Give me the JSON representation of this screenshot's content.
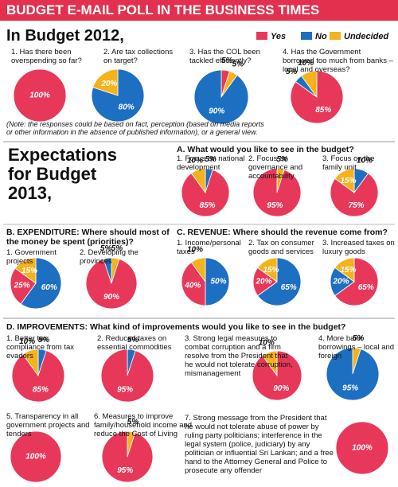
{
  "headings": {
    "title": "BUDGET E-MAIL POLL IN THE BUSINESS TIMES",
    "budget_2012": "In Budget 2012,",
    "note": "(Note: the responses could be based on fact, perception (based on media reports or other information in the absence of published information), or a general view.",
    "budget_2013": "Expectations for Budget 2013,",
    "section_a": "A. What would you like to see in the budget?",
    "section_b": "B. EXPENDITURE: Where should most of the money be spent (priorities)?",
    "section_c": "C. REVENUE: Where should the revenue come from?",
    "section_d": "D. IMPROVEMENTS: What kind of improvements would you like to see in the budget?"
  },
  "legend": {
    "items": [
      "Yes",
      "No",
      "Undecided"
    ],
    "colors": [
      "#e8385a",
      "#1d6fc2",
      "#f6b21b"
    ]
  },
  "chart_data": [
    {
      "type": "pie",
      "title": "1. Has there been overspending so far?",
      "categories": [
        "Yes"
      ],
      "values": [
        100
      ],
      "value_labels": [
        "100%"
      ]
    },
    {
      "type": "pie",
      "title": "2. Are tax collections on target?",
      "categories": [
        "No",
        "Undecided"
      ],
      "values": [
        80,
        20
      ],
      "value_labels": [
        "80%",
        "20%"
      ]
    },
    {
      "type": "pie",
      "title": "3. Has the COL been tackled efficiently?",
      "categories": [
        "Yes",
        "Undecided",
        "No"
      ],
      "values": [
        5,
        5,
        90
      ],
      "value_labels": [
        "5%",
        "5%",
        "90%"
      ]
    },
    {
      "type": "pie",
      "title": "4. Has the Government borrowed too much from banks – local and overseas?",
      "categories": [
        "Yes",
        "No",
        "Undecided"
      ],
      "values": [
        85,
        5,
        10
      ],
      "value_labels": [
        "85%",
        "5%",
        "10%"
      ]
    },
    {
      "type": "pie",
      "title": "1. Focus on national development",
      "categories": [
        "No",
        "Yes",
        "Undecided"
      ],
      "values": [
        5,
        85,
        10
      ],
      "value_labels": [
        "5%",
        "85%",
        "10%"
      ]
    },
    {
      "type": "pie",
      "title": "2. Focus on governance and accountability",
      "categories": [
        "Undecided",
        "Yes"
      ],
      "values": [
        5,
        95
      ],
      "value_labels": [
        "5%",
        "95%"
      ]
    },
    {
      "type": "pie",
      "title": "3. Focus on the family unit",
      "categories": [
        "No",
        "Yes",
        "Undecided"
      ],
      "values": [
        10,
        75,
        15
      ],
      "value_labels": [
        "10%",
        "75%",
        "15%"
      ]
    },
    {
      "type": "pie",
      "title": "1. Government projects",
      "categories": [
        "No",
        "Yes",
        "Undecided"
      ],
      "values": [
        60,
        25,
        15
      ],
      "value_labels": [
        "60%",
        "25%",
        "15%"
      ]
    },
    {
      "type": "pie",
      "title": "2. Developing the provinces",
      "categories": [
        "Undecided",
        "Yes",
        "No"
      ],
      "values": [
        5,
        90,
        5
      ],
      "value_labels": [
        "5%",
        "90%",
        "5%"
      ]
    },
    {
      "type": "pie",
      "title": "1. Income/personal taxes",
      "categories": [
        "No",
        "Yes",
        "Undecided"
      ],
      "values": [
        50,
        40,
        10
      ],
      "value_labels": [
        "50%",
        "40%",
        "10%"
      ]
    },
    {
      "type": "pie",
      "title": "2. Tax on consumer goods and services",
      "categories": [
        "No",
        "Yes",
        "Undecided"
      ],
      "values": [
        65,
        20,
        15
      ],
      "value_labels": [
        "65%",
        "20%",
        "15%"
      ]
    },
    {
      "type": "pie",
      "title": "3. Increased taxes on luxury goods",
      "categories": [
        "Yes",
        "No",
        "Undecided"
      ],
      "values": [
        65,
        20,
        15
      ],
      "value_labels": [
        "65%",
        "20%",
        "15%"
      ]
    },
    {
      "type": "pie",
      "title": "1. Better tax compliance from tax evaders",
      "categories": [
        "No",
        "Yes",
        "Undecided"
      ],
      "values": [
        5,
        85,
        10
      ],
      "value_labels": [
        "5%",
        "85%",
        "10%"
      ]
    },
    {
      "type": "pie",
      "title": "2. Reduced taxes on essential commodities",
      "categories": [
        "No",
        "Yes"
      ],
      "values": [
        5,
        95
      ],
      "value_labels": [
        "5%",
        "95%"
      ]
    },
    {
      "type": "pie",
      "title": "3. Strong legal measures to combat corruption and a firm resolve from the President that he would not tolerate corruption, mismanagement",
      "categories": [
        "Yes",
        "Undecided"
      ],
      "values": [
        90,
        10
      ],
      "value_labels": [
        "90%",
        "10%"
      ]
    },
    {
      "type": "pie",
      "title": "4. More bank borrowings – local and foreign",
      "categories": [
        "Undecided",
        "No"
      ],
      "values": [
        5,
        95
      ],
      "value_labels": [
        "5%",
        "95%"
      ]
    },
    {
      "type": "pie",
      "title": "5. Transparency in all government projects and tenders",
      "categories": [
        "Yes"
      ],
      "values": [
        100
      ],
      "value_labels": [
        "100%"
      ]
    },
    {
      "type": "pie",
      "title": "6. Measures to improve family/household income and reduce the Cost of Living",
      "categories": [
        "Undecided",
        "Yes"
      ],
      "values": [
        5,
        95
      ],
      "value_labels": [
        "5%",
        "95%"
      ]
    },
    {
      "type": "pie",
      "title": "7. Strong message from the President that he would not tolerate abuse of power by ruling party politicians; interference in the legal system (police, judiciary) by any politician or influential Sri Lankan; and a free hand to the Attorney General and Police to prosecute any offender",
      "categories": [
        "Yes"
      ],
      "values": [
        100
      ],
      "value_labels": [
        "100%"
      ]
    }
  ]
}
